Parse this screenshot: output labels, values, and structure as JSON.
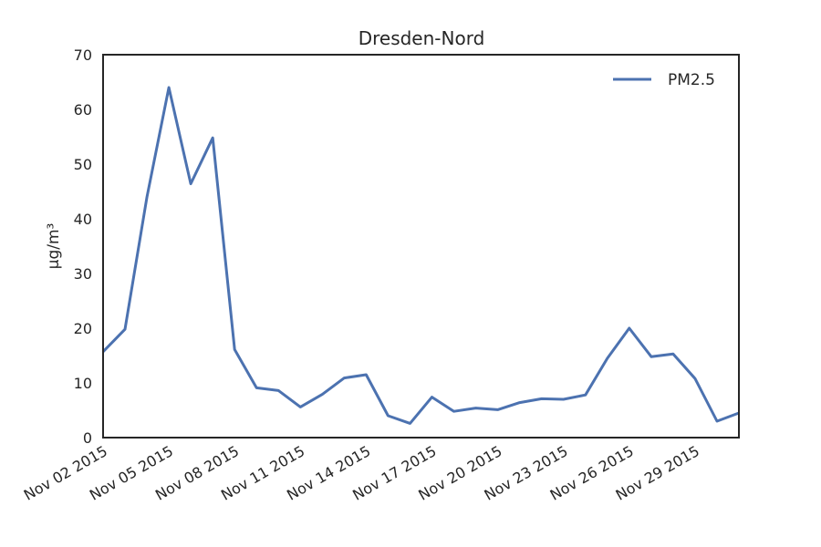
{
  "chart_data": {
    "type": "line",
    "title": "Dresden-Nord",
    "xlabel": "",
    "ylabel": "µg/m³",
    "ylim": [
      0,
      70
    ],
    "yticks": [
      0,
      10,
      20,
      30,
      40,
      50,
      60,
      70
    ],
    "xlim": [
      "2015-11-02",
      "2015-12-01"
    ],
    "xticks": [
      "Nov 02 2015",
      "Nov 05 2015",
      "Nov 08 2015",
      "Nov 11 2015",
      "Nov 14 2015",
      "Nov 17 2015",
      "Nov 20 2015",
      "Nov 23 2015",
      "Nov 26 2015",
      "Nov 29 2015"
    ],
    "grid": false,
    "legend_position": "top-right",
    "series": [
      {
        "name": "PM2.5",
        "color": "#4c72b0",
        "x": [
          "2015-11-02",
          "2015-11-03",
          "2015-11-04",
          "2015-11-05",
          "2015-11-06",
          "2015-11-07",
          "2015-11-08",
          "2015-11-09",
          "2015-11-10",
          "2015-11-11",
          "2015-11-12",
          "2015-11-13",
          "2015-11-14",
          "2015-11-15",
          "2015-11-16",
          "2015-11-17",
          "2015-11-18",
          "2015-11-19",
          "2015-11-20",
          "2015-11-21",
          "2015-11-22",
          "2015-11-23",
          "2015-11-24",
          "2015-11-25",
          "2015-11-26",
          "2015-11-27",
          "2015-11-28",
          "2015-11-29",
          "2015-11-30",
          "2015-12-01"
        ],
        "y": [
          15.7,
          19.8,
          44.0,
          64.0,
          46.4,
          54.8,
          16.1,
          9.1,
          8.6,
          5.6,
          7.9,
          10.9,
          11.5,
          4.0,
          2.6,
          7.4,
          4.8,
          5.4,
          5.1,
          6.4,
          7.1,
          7.0,
          7.8,
          14.5,
          20.0,
          14.8,
          15.3,
          10.8,
          3.0,
          4.5
        ]
      }
    ]
  }
}
